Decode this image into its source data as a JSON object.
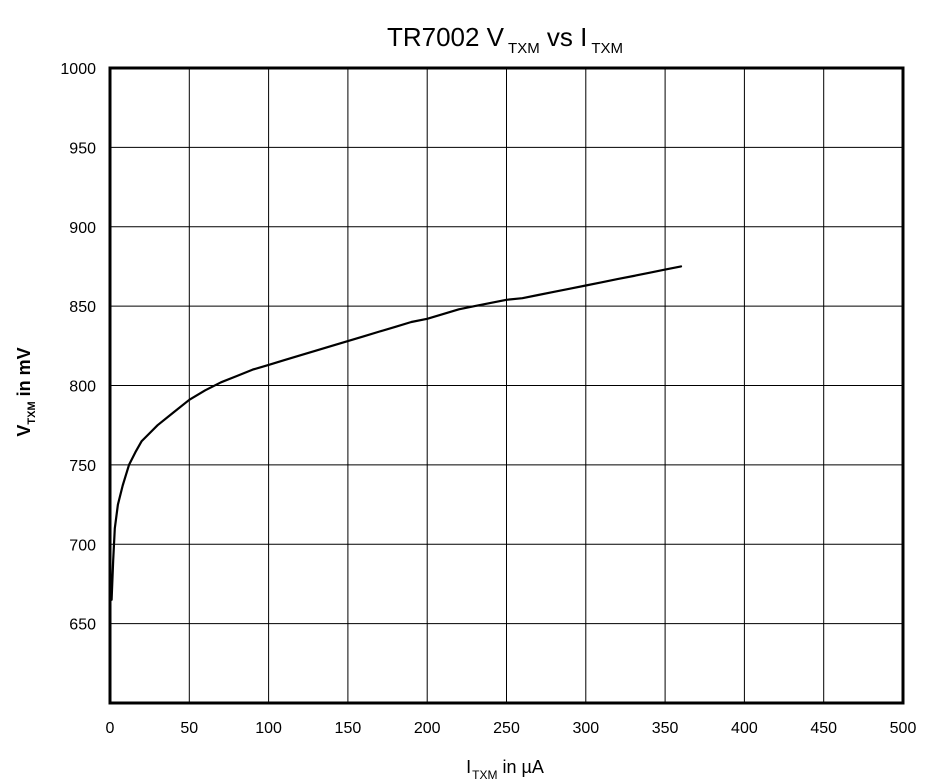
{
  "chart_data": {
    "type": "line",
    "title": {
      "main": "TR7002 V",
      "sub1": "TXM",
      "mid": " vs I",
      "sub2": "TXM"
    },
    "xlabel": {
      "main": "I",
      "sub": "TXM",
      "rest": " in µA"
    },
    "ylabel": {
      "main": "V",
      "sub": "TXM",
      "rest": " in mV"
    },
    "xlim": [
      0,
      500
    ],
    "ylim": [
      600,
      1000
    ],
    "x_ticks": [
      "0",
      "50",
      "100",
      "150",
      "200",
      "250",
      "300",
      "350",
      "400",
      "450",
      "500"
    ],
    "y_ticks": [
      "650",
      "700",
      "750",
      "800",
      "850",
      "900",
      "950",
      "1000"
    ],
    "y_tick_values": [
      650,
      700,
      750,
      800,
      850,
      900,
      950,
      1000
    ],
    "grid": true,
    "legend": "none",
    "series": [
      {
        "color": "#000000",
        "points": [
          [
            1,
            665
          ],
          [
            2,
            690
          ],
          [
            3,
            710
          ],
          [
            5,
            725
          ],
          [
            8,
            737
          ],
          [
            12,
            750
          ],
          [
            16,
            758
          ],
          [
            20,
            765
          ],
          [
            25,
            770
          ],
          [
            30,
            775
          ],
          [
            40,
            783
          ],
          [
            50,
            791
          ],
          [
            60,
            797
          ],
          [
            70,
            802
          ],
          [
            80,
            806
          ],
          [
            90,
            810
          ],
          [
            100,
            813
          ],
          [
            110,
            816
          ],
          [
            120,
            819
          ],
          [
            130,
            822
          ],
          [
            140,
            825
          ],
          [
            150,
            828
          ],
          [
            160,
            831
          ],
          [
            170,
            834
          ],
          [
            180,
            837
          ],
          [
            190,
            840
          ],
          [
            200,
            842
          ],
          [
            210,
            845
          ],
          [
            220,
            848
          ],
          [
            230,
            850
          ],
          [
            240,
            852
          ],
          [
            250,
            854
          ],
          [
            260,
            855
          ],
          [
            270,
            857
          ],
          [
            280,
            859
          ],
          [
            290,
            861
          ],
          [
            300,
            863
          ],
          [
            310,
            865
          ],
          [
            320,
            867
          ],
          [
            330,
            869
          ],
          [
            340,
            871
          ],
          [
            350,
            873
          ],
          [
            360,
            875
          ]
        ]
      }
    ]
  }
}
